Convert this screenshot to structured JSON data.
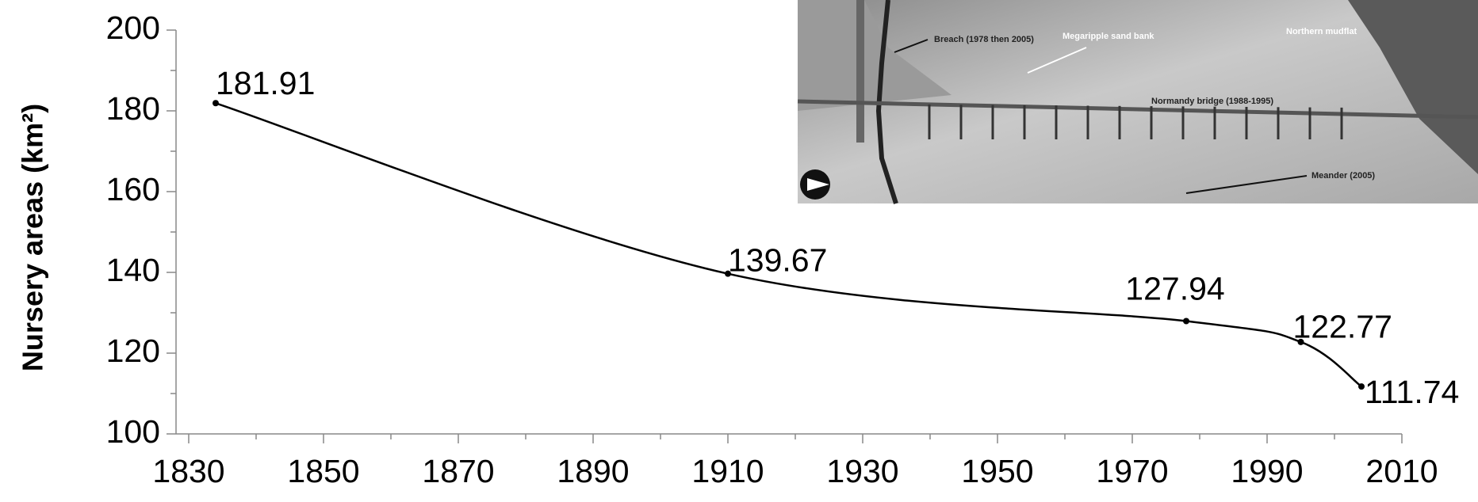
{
  "chart_data": {
    "type": "line",
    "y_label": "Nursery areas (km²)",
    "x": [
      1834,
      1910,
      1978,
      1995,
      2004
    ],
    "values": [
      181.91,
      139.67,
      127.94,
      122.77,
      111.74
    ],
    "color": "#000000",
    "xlim": [
      1830,
      2010
    ],
    "xticks": [
      1830,
      1850,
      1870,
      1890,
      1910,
      1930,
      1950,
      1970,
      1990,
      2010
    ],
    "ylim": [
      100,
      200
    ],
    "yticks": [
      100,
      120,
      140,
      160,
      180,
      200
    ],
    "smooth": true,
    "data_labels": true,
    "inset": {
      "labels": [
        "Breach (1978 then 2005)",
        "Megaripple sand bank",
        "Northern mudflat",
        "Normandy bridge (1988-1995)",
        "Meander (2005)"
      ]
    }
  }
}
